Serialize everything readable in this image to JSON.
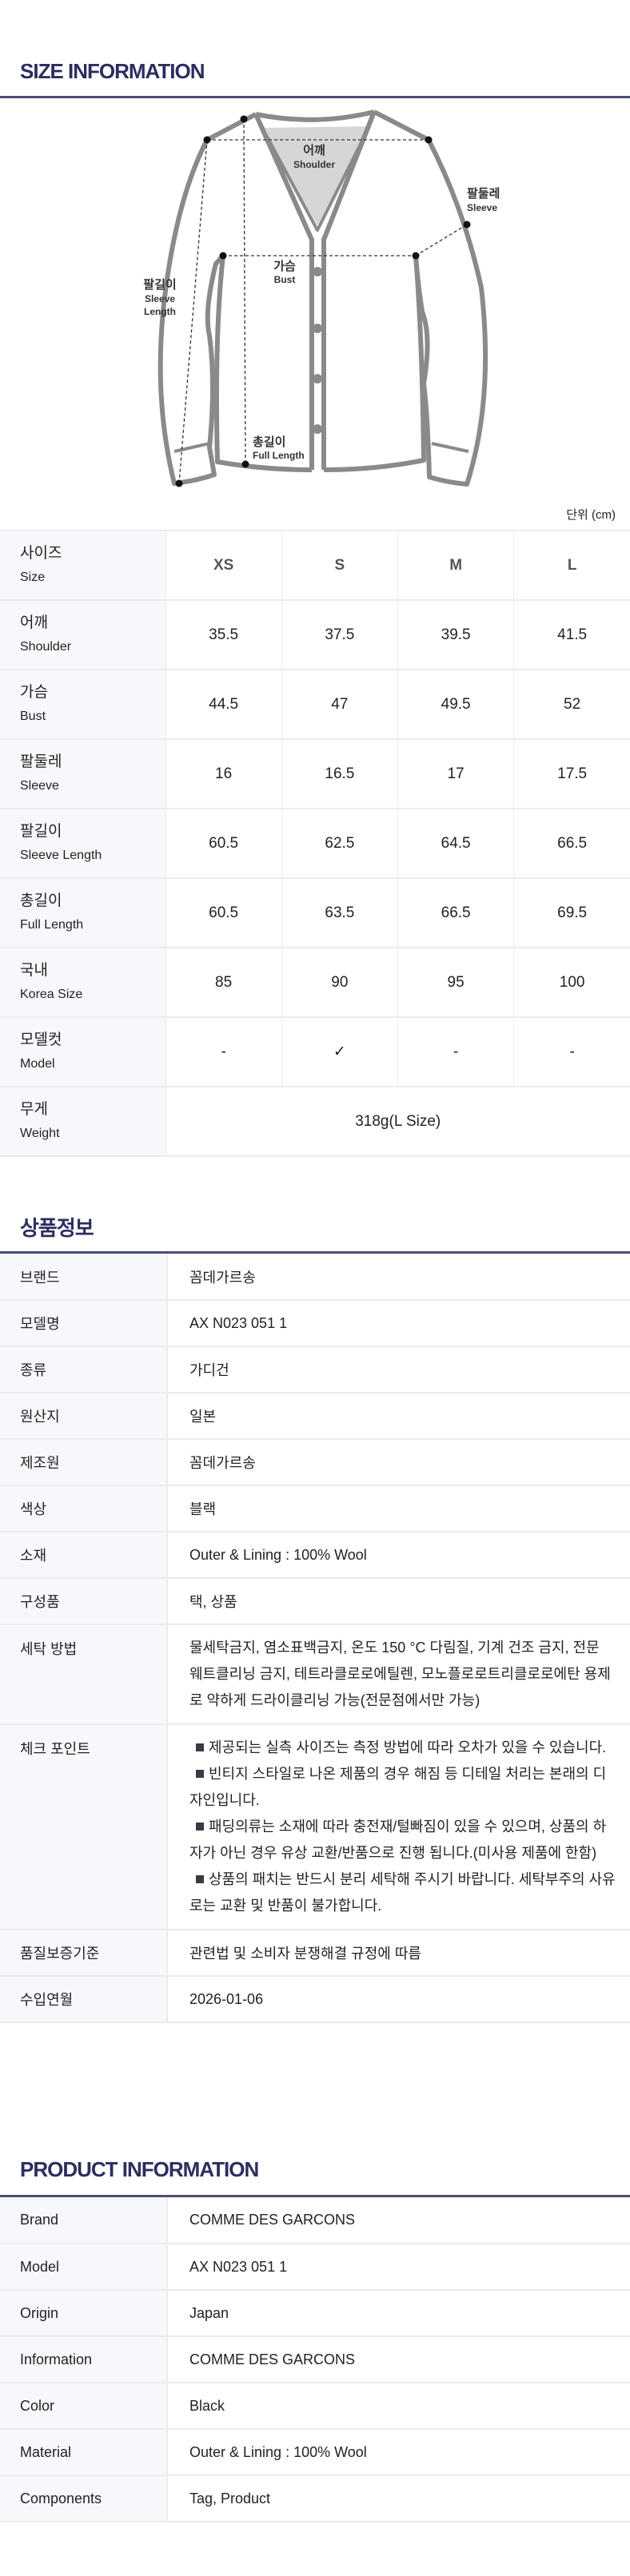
{
  "size_info": {
    "title": "SIZE INFORMATION",
    "diagram_labels": {
      "shoulder_ko": "어깨",
      "shoulder_en": "Shoulder",
      "sleeve_ko": "팔둘레",
      "sleeve_en": "Sleeve",
      "bust_ko": "가슴",
      "bust_en": "Bust",
      "sleeve_length_ko": "팔길이",
      "sleeve_length_en1": "Sleeve",
      "sleeve_length_en2": "Length",
      "full_length_ko": "총길이",
      "full_length_en": "Full Length"
    },
    "unit": "단위 (cm)",
    "table": {
      "header": {
        "ko": "사이즈",
        "en": "Size",
        "sizes": [
          "XS",
          "S",
          "M",
          "L"
        ]
      },
      "rows": [
        {
          "ko": "어깨",
          "en": "Shoulder",
          "values": [
            "35.5",
            "37.5",
            "39.5",
            "41.5"
          ]
        },
        {
          "ko": "가슴",
          "en": "Bust",
          "values": [
            "44.5",
            "47",
            "49.5",
            "52"
          ]
        },
        {
          "ko": "팔둘레",
          "en": "Sleeve",
          "values": [
            "16",
            "16.5",
            "17",
            "17.5"
          ]
        },
        {
          "ko": "팔길이",
          "en": "Sleeve Length",
          "values": [
            "60.5",
            "62.5",
            "64.5",
            "66.5"
          ]
        },
        {
          "ko": "총길이",
          "en": "Full Length",
          "values": [
            "60.5",
            "63.5",
            "66.5",
            "69.5"
          ]
        },
        {
          "ko": "국내",
          "en": "Korea Size",
          "values": [
            "85",
            "90",
            "95",
            "100"
          ]
        },
        {
          "ko": "모델컷",
          "en": "Model",
          "values": [
            "-",
            "✓",
            "-",
            "-"
          ]
        }
      ],
      "weight": {
        "ko": "무게",
        "en": "Weight",
        "value": "318g(L Size)"
      }
    }
  },
  "product_info_ko": {
    "title": "상품정보",
    "rows": [
      {
        "label": "브랜드",
        "value": "꼼데가르송"
      },
      {
        "label": "모델명",
        "value": "AX N023 051 1"
      },
      {
        "label": "종류",
        "value": "가디건"
      },
      {
        "label": "원산지",
        "value": "일본"
      },
      {
        "label": "제조원",
        "value": "꼼데가르송"
      },
      {
        "label": "색상",
        "value": "블랙"
      },
      {
        "label": "소재",
        "value": "Outer & Lining : 100% Wool"
      },
      {
        "label": "구성품",
        "value": "택, 상품"
      },
      {
        "label": "세탁 방법",
        "value": "물세탁금지, 염소표백금지, 온도 150 °C 다림질, 기계 건조 금지, 전문 웨트클리닝 금지, 테트라클로로에틸렌, 모노플로로트리클로로에탄 용제로 약하게 드라이클리닝 가능(전문점에서만 가능)"
      },
      {
        "label": "체크 포인트",
        "points": [
          "제공되는 실측 사이즈는 측정 방법에 따라 오차가 있을 수 있습니다.",
          "빈티지 스타일로 나온 제품의 경우 해짐 등 디테일 처리는 본래의 디자인입니다.",
          "패딩의류는 소재에 따라 충전재/털빠짐이 있을 수 있으며, 상품의 하자가 아닌 경우 유상 교환/반품으로 진행 됩니다.(미사용 제품에 한함)",
          "상품의 패치는 반드시 분리 세탁해 주시기 바랍니다. 세탁부주의 사유로는 교환 및 반품이 불가합니다."
        ]
      },
      {
        "label": "품질보증기준",
        "value": "관련법 및 소비자 분쟁해결 규정에 따름"
      },
      {
        "label": "수입연월",
        "value": "2026-01-06"
      }
    ]
  },
  "product_info_en": {
    "title": "PRODUCT INFORMATION",
    "rows": [
      {
        "label": "Brand",
        "value": "COMME DES GARCONS"
      },
      {
        "label": "Model",
        "value": "AX N023 051 1"
      },
      {
        "label": "Origin",
        "value": "Japan"
      },
      {
        "label": "Information",
        "value": "COMME DES GARCONS"
      },
      {
        "label": "Color",
        "value": "Black"
      },
      {
        "label": "Material",
        "value": "Outer & Lining : 100% Wool"
      },
      {
        "label": "Components",
        "value": "Tag, Product"
      }
    ]
  },
  "colors": {
    "title": "#2b2e5e",
    "rule": "#4a4d78",
    "label_bg": "#f7f8fc",
    "garment_stroke": "#8a8a8a"
  }
}
